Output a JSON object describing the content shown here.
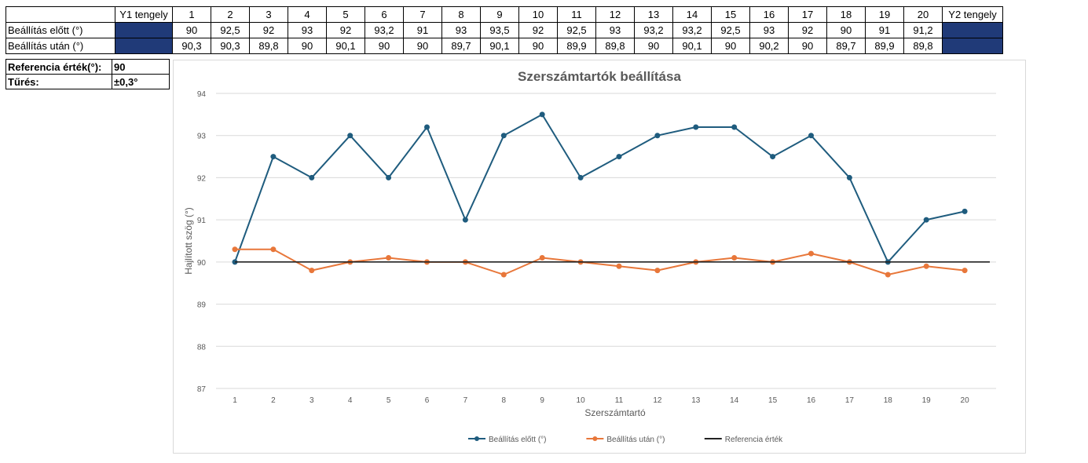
{
  "table": {
    "header_left": "",
    "y1_label": "Y1 tengely",
    "y2_label": "Y2 tengely",
    "columns": [
      "1",
      "2",
      "3",
      "4",
      "5",
      "6",
      "7",
      "8",
      "9",
      "10",
      "11",
      "12",
      "13",
      "14",
      "15",
      "16",
      "17",
      "18",
      "19",
      "20"
    ],
    "rows": [
      {
        "label": "Beállítás előtt (°)",
        "values": [
          "90",
          "92,5",
          "92",
          "93",
          "92",
          "93,2",
          "91",
          "93",
          "93,5",
          "92",
          "92,5",
          "93",
          "93,2",
          "93,2",
          "92,5",
          "93",
          "92",
          "90",
          "91",
          "91,2"
        ]
      },
      {
        "label": "Beállítás után  (°)",
        "values": [
          "90,3",
          "90,3",
          "89,8",
          "90",
          "90,1",
          "90",
          "90",
          "89,7",
          "90,1",
          "90",
          "89,9",
          "89,8",
          "90",
          "90,1",
          "90",
          "90,2",
          "90",
          "89,7",
          "89,9",
          "89,8"
        ]
      }
    ],
    "accent_color": "#203a78"
  },
  "info": {
    "reference_label": "Referencia érték(°):",
    "reference_value": "90",
    "tolerance_label": "Tűrés:",
    "tolerance_value": "±0,3°"
  },
  "chart_data": {
    "type": "line",
    "title": "Szerszámtartók beállítása",
    "xlabel": "Szerszámtartó",
    "ylabel": "Hajlított szög (°)",
    "ylim": [
      87,
      94
    ],
    "yticks": [
      87,
      88,
      89,
      90,
      91,
      92,
      93,
      94
    ],
    "grid": true,
    "legend_position": "bottom",
    "x": [
      1,
      2,
      3,
      4,
      5,
      6,
      7,
      8,
      9,
      10,
      11,
      12,
      13,
      14,
      15,
      16,
      17,
      18,
      19,
      20
    ],
    "series": [
      {
        "name": "Beállítás előtt (°)",
        "color": "#1f5c7e",
        "marker": true,
        "values": [
          90,
          92.5,
          92,
          93,
          92,
          93.2,
          91,
          93,
          93.5,
          92,
          92.5,
          93,
          93.2,
          93.2,
          92.5,
          93,
          92,
          90,
          91,
          91.2
        ]
      },
      {
        "name": "Beállítás után  (°)",
        "color": "#e8773a",
        "marker": true,
        "values": [
          90.3,
          90.3,
          89.8,
          90,
          90.1,
          90,
          90,
          89.7,
          90.1,
          90,
          89.9,
          89.8,
          90,
          90.1,
          90,
          90.2,
          90,
          89.7,
          89.9,
          89.8
        ]
      },
      {
        "name": "Referencia érték",
        "color": "#222222",
        "marker": false,
        "constant": 90
      }
    ]
  }
}
